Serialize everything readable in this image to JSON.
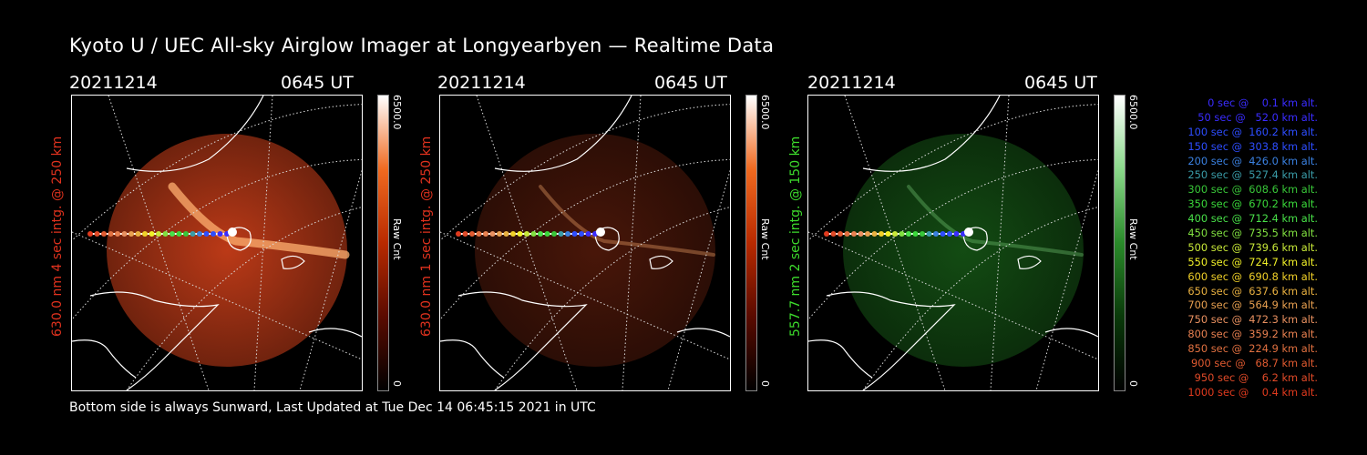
{
  "title": "Kyoto U / UEC All-sky Airglow Imager at Longyearbyen — Realtime Data",
  "footer": "Bottom side is always Sunward, Last Updated at Tue Dec 14 06:45:15 2021 in UTC",
  "colorbar": {
    "max_label": "6500.0",
    "min_label": "0",
    "unit_label": "Raw Cnt"
  },
  "panels": [
    {
      "date": "20211214",
      "time": "0645 UT",
      "ylabel": "630.0 nm 4 sec intg. @ 250 km",
      "label_color": "#e0321e",
      "tint": "#d0401a",
      "intensity": 0.9
    },
    {
      "date": "20211214",
      "time": "0645 UT",
      "ylabel": "630.0 nm 1 sec intg. @ 250 km",
      "label_color": "#e0321e",
      "tint": "#d0401a",
      "intensity": 0.35
    },
    {
      "date": "20211214",
      "time": "0645 UT",
      "ylabel": "557.7 nm 2 sec intg. @ 150 km",
      "label_color": "#3ddc2c",
      "tint": "#2aa82a",
      "intensity": 0.45
    }
  ],
  "legend": [
    {
      "text": "0 sec @    0.1 km alt.",
      "color": "#3a2cff"
    },
    {
      "text": "50 sec @   52.0 km alt.",
      "color": "#3a2cff"
    },
    {
      "text": "100 sec @  160.2 km alt.",
      "color": "#2d4dff"
    },
    {
      "text": "150 sec @  303.8 km alt.",
      "color": "#2d4dff"
    },
    {
      "text": "200 sec @  426.0 km alt.",
      "color": "#3a80e0"
    },
    {
      "text": "250 sec @  527.4 km alt.",
      "color": "#3a9ca8"
    },
    {
      "text": "300 sec @  608.6 km alt.",
      "color": "#38c638"
    },
    {
      "text": "350 sec @  670.2 km alt.",
      "color": "#3ad83a"
    },
    {
      "text": "400 sec @  712.4 km alt.",
      "color": "#48e048"
    },
    {
      "text": "450 sec @  735.5 km alt.",
      "color": "#80e040"
    },
    {
      "text": "500 sec @  739.6 km alt.",
      "color": "#c8e838"
    },
    {
      "text": "550 sec @  724.7 km alt.",
      "color": "#f0f028"
    },
    {
      "text": "600 sec @  690.8 km alt.",
      "color": "#f0d028"
    },
    {
      "text": "650 sec @  637.6 km alt.",
      "color": "#e8b040"
    },
    {
      "text": "700 sec @  564.9 km alt.",
      "color": "#e8a050"
    },
    {
      "text": "750 sec @  472.3 km alt.",
      "color": "#e89060"
    },
    {
      "text": "800 sec @  359.2 km alt.",
      "color": "#e88050"
    },
    {
      "text": "850 sec @  224.9 km alt.",
      "color": "#e07040"
    },
    {
      "text": "900 sec @   68.7 km alt.",
      "color": "#e05a30"
    },
    {
      "text": "950 sec @    6.2 km alt.",
      "color": "#e04a28"
    },
    {
      "text": "1000 sec @    0.4 km alt.",
      "color": "#e03a1e"
    }
  ]
}
